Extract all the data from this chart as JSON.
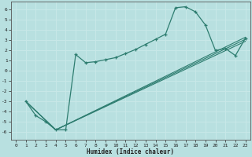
{
  "xlabel": "Humidex (Indice chaleur)",
  "xlim": [
    -0.5,
    23.5
  ],
  "ylim": [
    -6.8,
    6.8
  ],
  "xticks": [
    0,
    1,
    2,
    3,
    4,
    5,
    6,
    7,
    8,
    9,
    10,
    11,
    12,
    13,
    14,
    15,
    16,
    17,
    18,
    19,
    20,
    21,
    22,
    23
  ],
  "yticks": [
    -6,
    -5,
    -4,
    -3,
    -2,
    -1,
    0,
    1,
    2,
    3,
    4,
    5,
    6
  ],
  "bg_color": "#b8e0e0",
  "grid_color": "#d0ecec",
  "line_color": "#2e7d70",
  "main_line": {
    "x": [
      1,
      2,
      3,
      4,
      5,
      6,
      7,
      8,
      9,
      10,
      11,
      12,
      13,
      14,
      15,
      16,
      17,
      18,
      19,
      20,
      21,
      22,
      23
    ],
    "y": [
      -3.0,
      -4.4,
      -5.0,
      -5.8,
      -5.8,
      1.6,
      0.8,
      0.9,
      1.1,
      1.3,
      1.7,
      2.1,
      2.6,
      3.1,
      3.6,
      6.2,
      6.3,
      5.8,
      4.5,
      2.0,
      2.2,
      1.5,
      3.2
    ]
  },
  "trend_lines": [
    {
      "x": [
        1,
        4,
        23
      ],
      "y": [
        -3.0,
        -5.8,
        3.3
      ]
    },
    {
      "x": [
        1,
        4,
        23
      ],
      "y": [
        -3.0,
        -5.8,
        3.1
      ]
    },
    {
      "x": [
        1,
        4,
        23
      ],
      "y": [
        -3.0,
        -5.8,
        2.9
      ]
    }
  ]
}
